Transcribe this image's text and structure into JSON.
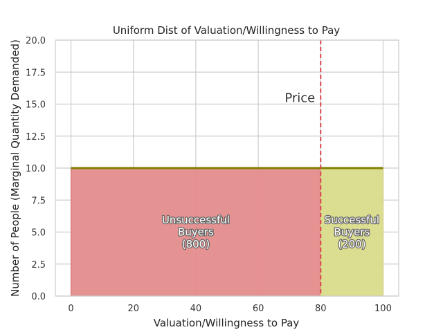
{
  "chart_data": {
    "type": "area",
    "title": "Uniform Dist of Valuation/Willingness to Pay",
    "xlabel": "Valuation/Willingness to Pay",
    "ylabel": "Number of People (Marginal Quantity Demanded)",
    "xlim": [
      -5,
      105
    ],
    "ylim": [
      0,
      20
    ],
    "x_ticks": [
      0,
      20,
      40,
      60,
      80,
      100
    ],
    "y_ticks": [
      0.0,
      2.5,
      5.0,
      7.5,
      10.0,
      12.5,
      15.0,
      17.5,
      20.0
    ],
    "y_tick_labels": [
      "0.0",
      "2.5",
      "5.0",
      "7.5",
      "10.0",
      "12.5",
      "15.0",
      "17.5",
      "20.0"
    ],
    "grid": true,
    "distribution": {
      "x_start": 0,
      "x_end": 100,
      "height": 10,
      "color": "#808000"
    },
    "regions": [
      {
        "lines": [
          "Unsuccessful",
          "Buyers",
          "(800)"
        ],
        "x_start": 0,
        "x_end": 80,
        "height": 10,
        "color": "#e48c8c"
      },
      {
        "lines": [
          "Successful",
          "Buyers",
          "(200)"
        ],
        "x_start": 80,
        "x_end": 100,
        "height": 10,
        "color": "#d9dc8a"
      }
    ],
    "price": {
      "label": "Price",
      "x": 80,
      "label_y": 15.5,
      "color": "#d9434b"
    }
  }
}
